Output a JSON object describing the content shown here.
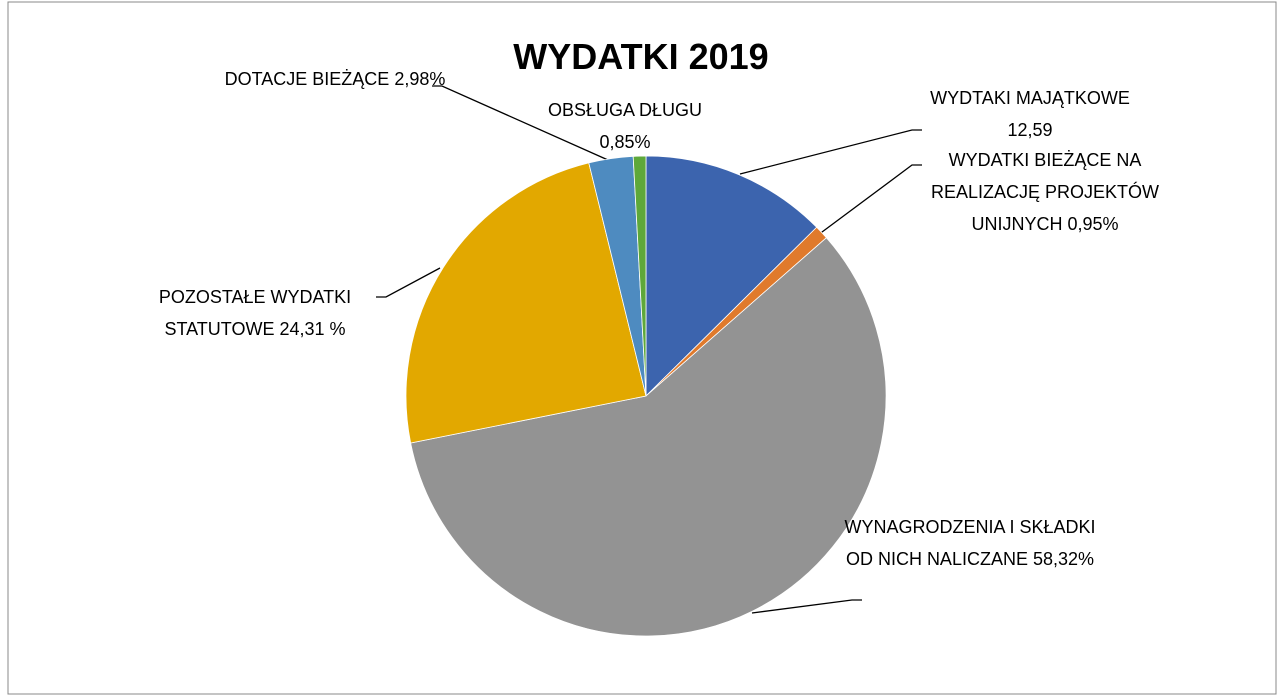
{
  "chart_data": {
    "type": "pie",
    "title": "WYDATKI 2019",
    "categories": [
      "WYDTAKI MAJĄTKOWE",
      "WYDATKI BIEŻĄCE NA REALIZACJĘ PROJEKTÓW UNIJNYCH",
      "WYNAGRODZENIA I SKŁADKI OD NICH NALICZANE",
      "POZOSTAŁE WYDATKI STATUTOWE",
      "DOTACJE BIEŻĄCE",
      "OBSŁUGA DŁUGU"
    ],
    "values": [
      12.59,
      0.95,
      58.32,
      24.31,
      2.98,
      0.85
    ],
    "value_labels": [
      "12,59",
      "0,95%",
      "58,32%",
      "24,31 %",
      "2,98%",
      "0,85%"
    ],
    "colors": [
      "#3c64ae",
      "#e07a2c",
      "#939393",
      "#e2a800",
      "#4e8bc0",
      "#5ea83a"
    ]
  }
}
